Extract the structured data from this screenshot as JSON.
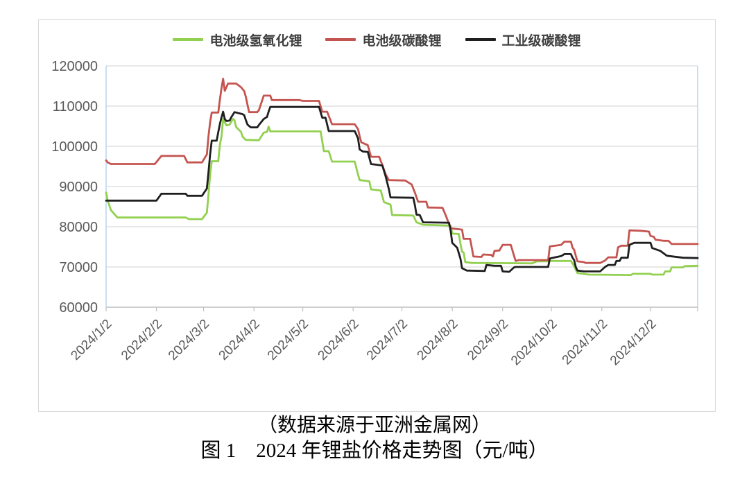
{
  "captions": {
    "source": "（数据来源于亚洲金属网）",
    "figure": "图 1　2024 年锂盐价格走势图（元/吨）"
  },
  "chart_data": {
    "type": "line",
    "title": "",
    "unit": "元/吨",
    "legend_position": "top",
    "grid": true,
    "ylim": [
      60000,
      120000
    ],
    "y_ticks": [
      120000,
      110000,
      100000,
      90000,
      80000,
      70000,
      60000
    ],
    "x_tick_labels": [
      "2024/1/2",
      "2024/2/2",
      "2024/3/2",
      "2024/4/2",
      "2024/5/2",
      "2024/6/2",
      "2024/7/2",
      "2024/8/2",
      "2024/9/2",
      "2024/10/2",
      "2024/11/2",
      "2024/12/2"
    ],
    "legend": [
      "电池级氢氧化锂",
      "电池级碳酸锂",
      "工业级碳酸锂"
    ],
    "colors": {
      "grid": "#d9d9d9",
      "plot_border": "#bdd7ee",
      "axis_line": "#bfbfbf",
      "tick_text": "#595959",
      "frame": "#d9d9d9"
    },
    "series": [
      {
        "key": "battery-lithium-hydroxide",
        "name": "电池级氢氧化锂",
        "color": "#92d050",
        "points": [
          [
            "1/2",
            88500
          ],
          [
            "1/3",
            86500
          ],
          [
            "1/5",
            84100
          ],
          [
            "1/9",
            82300
          ],
          [
            "2/20",
            82300
          ],
          [
            "2/22",
            81900
          ],
          [
            "3/1",
            81900
          ],
          [
            "3/4",
            83500
          ],
          [
            "3/5",
            88000
          ],
          [
            "3/6",
            93000
          ],
          [
            "3/7",
            96300
          ],
          [
            "3/11",
            96300
          ],
          [
            "3/12",
            100300
          ],
          [
            "3/13",
            102500
          ],
          [
            "3/14",
            106800
          ],
          [
            "3/16",
            105200
          ],
          [
            "3/18",
            105400
          ],
          [
            "3/20",
            106800
          ],
          [
            "3/21",
            106500
          ],
          [
            "3/22",
            104800
          ],
          [
            "3/25",
            103600
          ],
          [
            "3/26",
            102400
          ],
          [
            "3/28",
            101600
          ],
          [
            "4/5",
            101500
          ],
          [
            "4/8",
            103400
          ],
          [
            "4/10",
            103600
          ],
          [
            "4/11",
            104900
          ],
          [
            "4/12",
            103700
          ],
          [
            "5/13",
            103700
          ],
          [
            "5/15",
            98800
          ],
          [
            "5/18",
            98800
          ],
          [
            "5/20",
            96200
          ],
          [
            "6/3",
            96200
          ],
          [
            "6/5",
            93000
          ],
          [
            "6/6",
            91600
          ],
          [
            "6/12",
            91300
          ],
          [
            "6/13",
            89300
          ],
          [
            "6/19",
            89000
          ],
          [
            "6/21",
            86100
          ],
          [
            "6/25",
            85500
          ],
          [
            "6/26",
            82900
          ],
          [
            "7/9",
            82800
          ],
          [
            "7/11",
            81100
          ],
          [
            "7/15",
            80500
          ],
          [
            "8/1",
            80300
          ],
          [
            "8/2",
            78300
          ],
          [
            "8/6",
            78200
          ],
          [
            "8/7",
            75800
          ],
          [
            "8/8",
            73800
          ],
          [
            "8/9",
            73600
          ],
          [
            "8/10",
            71200
          ],
          [
            "8/14",
            71000
          ],
          [
            "9/20",
            70900
          ],
          [
            "9/23",
            71400
          ],
          [
            "9/30",
            71400
          ],
          [
            "10/1",
            71500
          ],
          [
            "10/14",
            71500
          ],
          [
            "10/16",
            70200
          ],
          [
            "10/17",
            69300
          ],
          [
            "10/18",
            68500
          ],
          [
            "10/25",
            68100
          ],
          [
            "11/20",
            68000
          ],
          [
            "11/21",
            68300
          ],
          [
            "12/2",
            68300
          ],
          [
            "12/3",
            68100
          ],
          [
            "12/10",
            68100
          ],
          [
            "12/11",
            68900
          ],
          [
            "12/14",
            68900
          ],
          [
            "12/15",
            69900
          ],
          [
            "12/22",
            69900
          ],
          [
            "12/23",
            70200
          ],
          [
            "12/31",
            70300
          ]
        ]
      },
      {
        "key": "battery-lithium-carbonate",
        "name": "电池级碳酸锂",
        "color": "#c4544f",
        "points": [
          [
            "1/2",
            96500
          ],
          [
            "1/3",
            96000
          ],
          [
            "1/5",
            95600
          ],
          [
            "2/1",
            95600
          ],
          [
            "2/5",
            97600
          ],
          [
            "2/19",
            97600
          ],
          [
            "2/21",
            96000
          ],
          [
            "3/1",
            96000
          ],
          [
            "3/4",
            98000
          ],
          [
            "3/5",
            102500
          ],
          [
            "3/6",
            106000
          ],
          [
            "3/7",
            108400
          ],
          [
            "3/11",
            108400
          ],
          [
            "3/12",
            111500
          ],
          [
            "3/13",
            114500
          ],
          [
            "3/14",
            116800
          ],
          [
            "3/15",
            113800
          ],
          [
            "3/17",
            115600
          ],
          [
            "3/22",
            115600
          ],
          [
            "3/25",
            114700
          ],
          [
            "3/27",
            113700
          ],
          [
            "3/28",
            112300
          ],
          [
            "3/29",
            110300
          ],
          [
            "3/30",
            108500
          ],
          [
            "4/4",
            108500
          ],
          [
            "4/5",
            109000
          ],
          [
            "4/8",
            112600
          ],
          [
            "4/12",
            112600
          ],
          [
            "4/13",
            111500
          ],
          [
            "4/30",
            111500
          ],
          [
            "5/2",
            111300
          ],
          [
            "5/12",
            111300
          ],
          [
            "5/14",
            108600
          ],
          [
            "5/17",
            108600
          ],
          [
            "5/20",
            105500
          ],
          [
            "6/3",
            105500
          ],
          [
            "6/5",
            104300
          ],
          [
            "6/6",
            102500
          ],
          [
            "6/7",
            101000
          ],
          [
            "6/11",
            100300
          ],
          [
            "6/13",
            97400
          ],
          [
            "6/18",
            97400
          ],
          [
            "6/20",
            95300
          ],
          [
            "6/22",
            93000
          ],
          [
            "6/24",
            91600
          ],
          [
            "7/4",
            91500
          ],
          [
            "7/8",
            90500
          ],
          [
            "7/10",
            88500
          ],
          [
            "7/12",
            86200
          ],
          [
            "7/17",
            86200
          ],
          [
            "7/18",
            84800
          ],
          [
            "7/27",
            84700
          ],
          [
            "7/29",
            82800
          ],
          [
            "8/1",
            79600
          ],
          [
            "8/8",
            79300
          ],
          [
            "8/9",
            77000
          ],
          [
            "8/13",
            77000
          ],
          [
            "8/15",
            72600
          ],
          [
            "8/20",
            72500
          ],
          [
            "8/21",
            73100
          ],
          [
            "8/26",
            73000
          ],
          [
            "8/27",
            72600
          ],
          [
            "8/28",
            74000
          ],
          [
            "8/31",
            74100
          ],
          [
            "9/2",
            75500
          ],
          [
            "9/7",
            75500
          ],
          [
            "9/9",
            72800
          ],
          [
            "9/10",
            71500
          ],
          [
            "9/12",
            71700
          ],
          [
            "9/30",
            71700
          ],
          [
            "10/1",
            75100
          ],
          [
            "10/8",
            75500
          ],
          [
            "10/10",
            76300
          ],
          [
            "10/14",
            76300
          ],
          [
            "10/15",
            74800
          ],
          [
            "10/16",
            74300
          ],
          [
            "10/17",
            72800
          ],
          [
            "10/18",
            71400
          ],
          [
            "10/22",
            71200
          ],
          [
            "10/23",
            71000
          ],
          [
            "11/1",
            71000
          ],
          [
            "11/4",
            71600
          ],
          [
            "11/6",
            72400
          ],
          [
            "11/11",
            72400
          ],
          [
            "11/12",
            74900
          ],
          [
            "11/14",
            75300
          ],
          [
            "11/18",
            75300
          ],
          [
            "11/19",
            79100
          ],
          [
            "11/26",
            79000
          ],
          [
            "12/1",
            78800
          ],
          [
            "12/2",
            77700
          ],
          [
            "12/4",
            77500
          ],
          [
            "12/5",
            76800
          ],
          [
            "12/10",
            76500
          ],
          [
            "12/13",
            76500
          ],
          [
            "12/15",
            75700
          ],
          [
            "12/31",
            75700
          ]
        ]
      },
      {
        "key": "industrial-lithium-carbonate",
        "name": "工业级碳酸锂",
        "color": "#1f1f1f",
        "points": [
          [
            "1/2",
            86500
          ],
          [
            "2/2",
            86500
          ],
          [
            "2/5",
            88200
          ],
          [
            "2/20",
            88200
          ],
          [
            "2/21",
            87700
          ],
          [
            "3/1",
            87700
          ],
          [
            "3/4",
            89500
          ],
          [
            "3/5",
            93500
          ],
          [
            "3/6",
            98000
          ],
          [
            "3/7",
            101400
          ],
          [
            "3/10",
            101400
          ],
          [
            "3/11",
            103500
          ],
          [
            "3/12",
            105500
          ],
          [
            "3/13",
            107200
          ],
          [
            "3/14",
            108600
          ],
          [
            "3/15",
            106800
          ],
          [
            "3/16",
            106300
          ],
          [
            "3/18",
            106400
          ],
          [
            "3/19",
            107200
          ],
          [
            "3/21",
            108500
          ],
          [
            "3/26",
            108000
          ],
          [
            "3/27",
            107700
          ],
          [
            "3/28",
            106500
          ],
          [
            "3/29",
            105400
          ],
          [
            "3/31",
            104700
          ],
          [
            "4/4",
            104700
          ],
          [
            "4/5",
            105300
          ],
          [
            "4/8",
            106800
          ],
          [
            "4/10",
            107300
          ],
          [
            "4/11",
            108600
          ],
          [
            "4/12",
            109800
          ],
          [
            "5/12",
            109800
          ],
          [
            "5/14",
            107100
          ],
          [
            "5/16",
            107100
          ],
          [
            "5/18",
            103800
          ],
          [
            "6/3",
            103800
          ],
          [
            "6/5",
            102000
          ],
          [
            "6/6",
            99200
          ],
          [
            "6/8",
            98700
          ],
          [
            "6/11",
            98600
          ],
          [
            "6/13",
            95600
          ],
          [
            "6/20",
            95200
          ],
          [
            "6/22",
            92500
          ],
          [
            "6/24",
            89300
          ],
          [
            "6/25",
            87300
          ],
          [
            "7/9",
            87200
          ],
          [
            "7/10",
            85400
          ],
          [
            "7/11",
            83000
          ],
          [
            "7/13",
            82900
          ],
          [
            "7/15",
            81100
          ],
          [
            "7/31",
            81000
          ],
          [
            "8/1",
            79000
          ],
          [
            "8/2",
            76000
          ],
          [
            "8/5",
            74800
          ],
          [
            "8/7",
            72100
          ],
          [
            "8/8",
            69700
          ],
          [
            "8/11",
            69100
          ],
          [
            "8/22",
            69000
          ],
          [
            "8/23",
            70500
          ],
          [
            "8/28",
            70300
          ],
          [
            "9/1",
            70300
          ],
          [
            "9/2",
            68900
          ],
          [
            "9/6",
            68800
          ],
          [
            "9/9",
            69900
          ],
          [
            "9/10",
            70000
          ],
          [
            "9/30",
            70000
          ],
          [
            "10/1",
            72100
          ],
          [
            "10/8",
            72700
          ],
          [
            "10/10",
            73200
          ],
          [
            "10/14",
            73200
          ],
          [
            "10/15",
            72300
          ],
          [
            "10/16",
            71700
          ],
          [
            "10/17",
            70000
          ],
          [
            "10/18",
            69100
          ],
          [
            "10/22",
            68900
          ],
          [
            "11/1",
            68900
          ],
          [
            "11/4",
            70000
          ],
          [
            "11/6",
            70500
          ],
          [
            "11/10",
            70500
          ],
          [
            "11/11",
            71500
          ],
          [
            "11/13",
            71500
          ],
          [
            "11/14",
            72300
          ],
          [
            "11/18",
            72300
          ],
          [
            "11/19",
            75500
          ],
          [
            "11/22",
            76000
          ],
          [
            "12/2",
            76000
          ],
          [
            "12/3",
            74700
          ],
          [
            "12/8",
            74000
          ],
          [
            "12/12",
            72800
          ],
          [
            "12/22",
            72300
          ],
          [
            "12/31",
            72200
          ]
        ]
      }
    ]
  }
}
